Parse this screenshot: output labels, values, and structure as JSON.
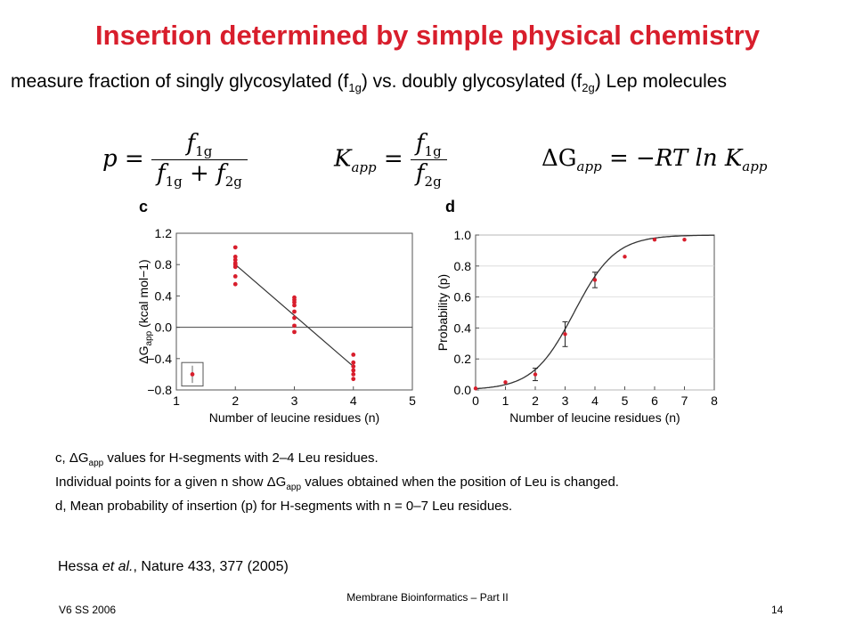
{
  "slide": {
    "title": "Insertion determined by simple physical chemistry",
    "subtitle": {
      "text1": "measure fraction of singly glycosylated (f",
      "sub1": "1g",
      "text2": ") vs. doubly glycosylated (f",
      "sub2": "2g",
      "text3": ") Lep molecules"
    }
  },
  "formulas": {
    "p": {
      "lhs": "p",
      "num_f": "f",
      "num_sub": "1g",
      "den_f1": "f",
      "den_sub1": "1g",
      "den_f2": "f",
      "den_sub2": "2g"
    },
    "kapp": {
      "lhs_k": "K",
      "lhs_sub": "app",
      "num_f": "f",
      "num_sub": "1g",
      "den_f": "f",
      "den_sub": "2g"
    },
    "dg": {
      "lhs": "ΔG",
      "lhs_sub": "app",
      "rhs": "= −RT ln K",
      "rhs_sub": "app"
    }
  },
  "chart_data": [
    {
      "type": "scatter",
      "panel": "c",
      "xlabel": "Number of leucine residues (n)",
      "ylabel": "ΔGapp (kcal mol−1)",
      "xlim": [
        1,
        5
      ],
      "ylim": [
        -0.8,
        1.2
      ],
      "xticks": [
        1,
        2,
        3,
        4,
        5
      ],
      "yticks": [
        -0.8,
        -0.4,
        0.0,
        0.4,
        0.8,
        1.2
      ],
      "ytick_labels": [
        "−0.8",
        "−0.4",
        "0.0",
        "0.4",
        "0.8",
        "1.2"
      ],
      "points": [
        {
          "x": 2,
          "y": 1.02
        },
        {
          "x": 2,
          "y": 0.9
        },
        {
          "x": 2,
          "y": 0.86
        },
        {
          "x": 2,
          "y": 0.82
        },
        {
          "x": 2,
          "y": 0.8
        },
        {
          "x": 2,
          "y": 0.77
        },
        {
          "x": 2,
          "y": 0.65
        },
        {
          "x": 2,
          "y": 0.55
        },
        {
          "x": 3,
          "y": 0.38
        },
        {
          "x": 3,
          "y": 0.35
        },
        {
          "x": 3,
          "y": 0.32
        },
        {
          "x": 3,
          "y": 0.28
        },
        {
          "x": 3,
          "y": 0.2
        },
        {
          "x": 3,
          "y": 0.12
        },
        {
          "x": 3,
          "y": 0.02
        },
        {
          "x": 3,
          "y": -0.06
        },
        {
          "x": 4,
          "y": -0.35
        },
        {
          "x": 4,
          "y": -0.45
        },
        {
          "x": 4,
          "y": -0.5
        },
        {
          "x": 4,
          "y": -0.55
        },
        {
          "x": 4,
          "y": -0.6
        },
        {
          "x": 4,
          "y": -0.66
        }
      ],
      "fit_line": [
        {
          "x": 2,
          "y": 0.8
        },
        {
          "x": 4,
          "y": -0.5
        }
      ],
      "zero_line": {
        "y": 0.0
      },
      "inset": {
        "point_y": -0.6,
        "error": 0.11
      },
      "colors": {
        "points": "#d81e2c",
        "line": "#333333"
      }
    },
    {
      "type": "line",
      "panel": "d",
      "xlabel": "Number of leucine residues (n)",
      "ylabel": "Probability (p)",
      "xlim": [
        0,
        8
      ],
      "ylim": [
        0,
        1.0
      ],
      "xticks": [
        0,
        1,
        2,
        3,
        4,
        5,
        6,
        7,
        8
      ],
      "yticks": [
        0.0,
        0.2,
        0.4,
        0.6,
        0.8,
        1.0
      ],
      "ytick_labels": [
        "0.0",
        "0.2",
        "0.4",
        "0.6",
        "0.8",
        "1.0"
      ],
      "points": [
        {
          "x": 0,
          "y": 0.01,
          "err": 0
        },
        {
          "x": 1,
          "y": 0.05,
          "err": 0
        },
        {
          "x": 2,
          "y": 0.1,
          "err": 0.04
        },
        {
          "x": 3,
          "y": 0.36,
          "err": 0.08
        },
        {
          "x": 4,
          "y": 0.71,
          "err": 0.05
        },
        {
          "x": 5,
          "y": 0.86,
          "err": 0
        },
        {
          "x": 6,
          "y": 0.97,
          "err": 0
        },
        {
          "x": 7,
          "y": 0.97,
          "err": 0
        }
      ],
      "fit_curve": {
        "midpoint": 3.3,
        "steepness": 1.45,
        "x_end": 8
      },
      "colors": {
        "points": "#d81e2c",
        "line": "#333333"
      }
    }
  ],
  "caption": {
    "line1": {
      "pre": "c, ΔG",
      "sub": "app",
      "post": " values for H-segments with 2–4 Leu residues."
    },
    "line2": {
      "pre": "Individual points for a given n show ΔG",
      "sub": "app",
      "post": " values obtained when the position of Leu is changed."
    },
    "line3": "d, Mean probability of insertion (p) for H-segments with n = 0–7 Leu residues."
  },
  "reference": {
    "authors": "Hessa",
    "etal": "et al.",
    "rest": ", Nature 433, 377 (2005)"
  },
  "footer": {
    "center": "Membrane Bioinformatics – Part II",
    "left": "V6 SS 2006",
    "right": "14"
  }
}
